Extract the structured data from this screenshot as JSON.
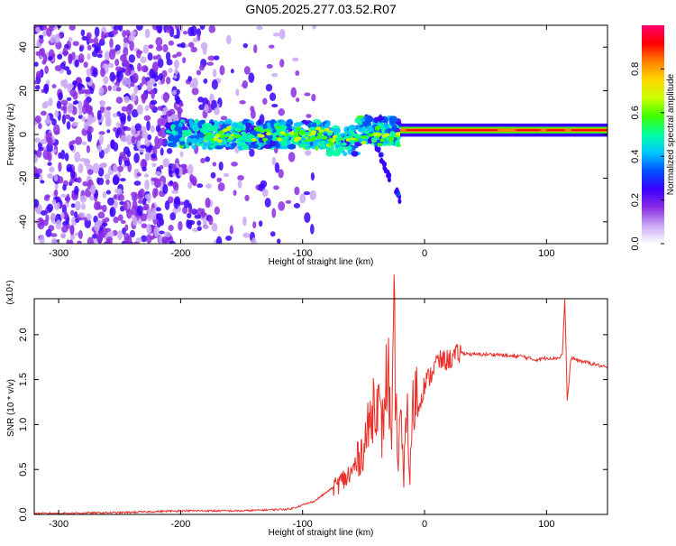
{
  "figure_title": "GN05.2025.277.03.52.R07",
  "chart_data": [
    {
      "type": "heatmap",
      "title": "GN05.2025.277.03.52.R07",
      "xlabel": "Height of straight line (km)",
      "ylabel": "Frequency (Hz)",
      "xlim": [
        -320,
        150
      ],
      "ylim": [
        -50,
        50
      ],
      "xticks": [
        -300,
        -200,
        -100,
        0,
        100
      ],
      "yticks": [
        -40,
        -20,
        0,
        20,
        40
      ],
      "colorbar": {
        "label": "Normalized spectral amplitude",
        "range": [
          0,
          1
        ],
        "ticks": [
          "0.0",
          "0.2",
          "0.4",
          "0.6",
          "0.8"
        ],
        "tick_values": [
          0.0,
          0.2,
          0.4,
          0.6,
          0.8
        ],
        "colormap": [
          "#ffffff",
          "#c9a8f5",
          "#8a2be2",
          "#3a00ff",
          "#0050ff",
          "#00c8ff",
          "#00ffa0",
          "#40ff00",
          "#c8ff00",
          "#ffd800",
          "#ff8000",
          "#ff0000",
          "#ff0070"
        ]
      },
      "regions": [
        {
          "name": "scattered noise",
          "x_range": [
            -320,
            -130
          ],
          "freq_range": [
            -50,
            50
          ],
          "amplitude": 0.15
        },
        {
          "name": "onset band",
          "x_range": [
            -210,
            -20
          ],
          "freq_center": [
            -3,
            0
          ],
          "amplitude": 0.4
        },
        {
          "name": "steady line",
          "x_range": [
            -20,
            150
          ],
          "freq_center": 2,
          "amplitude": 0.95
        },
        {
          "name": "tail",
          "x_range": [
            -40,
            -20
          ],
          "freq_range": [
            -30,
            -5
          ],
          "amplitude": 0.25
        }
      ]
    },
    {
      "type": "line",
      "xlabel": "Height of straight line (km)",
      "ylabel": "SNR (10 * v/v)",
      "y_multiplier": "(x10⁴)",
      "xlim": [
        -320,
        150
      ],
      "ylim": [
        0,
        2.4
      ],
      "xticks": [
        -300,
        -200,
        -100,
        0,
        100
      ],
      "yticks": [
        "0.0",
        "0.5",
        "1.0",
        "1.5",
        "2.0"
      ],
      "ytick_values": [
        0.0,
        0.5,
        1.0,
        1.5,
        2.0
      ],
      "color": "#e8312a",
      "series": [
        {
          "name": "SNR",
          "x": [
            -320,
            -250,
            -200,
            -150,
            -110,
            -90,
            -80,
            -70,
            -60,
            -50,
            -45,
            -40,
            -35,
            -30,
            -27,
            -25,
            -22,
            -20,
            -17,
            -15,
            -12,
            -10,
            -7,
            -5,
            0,
            5,
            10,
            20,
            30,
            40,
            50,
            60,
            70,
            80,
            90,
            100,
            110,
            113,
            115,
            117,
            120,
            130,
            140,
            150
          ],
          "y": [
            0.01,
            0.02,
            0.04,
            0.04,
            0.06,
            0.15,
            0.25,
            0.35,
            0.45,
            0.75,
            1.0,
            1.4,
            0.9,
            1.7,
            0.6,
            2.1,
            0.5,
            1.2,
            0.3,
            1.35,
            0.4,
            1.1,
            1.4,
            1.2,
            1.45,
            1.55,
            1.7,
            1.72,
            1.8,
            1.78,
            1.78,
            1.78,
            1.76,
            1.76,
            1.72,
            1.74,
            1.74,
            1.78,
            2.4,
            1.25,
            1.74,
            1.7,
            1.67,
            1.63
          ]
        }
      ]
    }
  ]
}
